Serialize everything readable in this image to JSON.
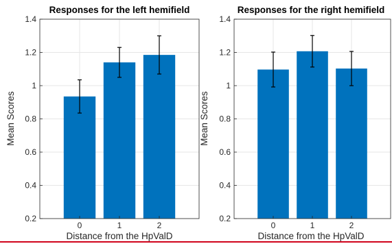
{
  "chart_data": [
    {
      "type": "bar",
      "title": "Responses for the left hemifield",
      "xlabel": "Distance from the HpValD",
      "ylabel": "Mean Scores",
      "categories": [
        "0",
        "1",
        "2"
      ],
      "values": [
        0.935,
        1.14,
        1.185
      ],
      "errors": [
        0.1,
        0.09,
        0.115
      ],
      "ylim": [
        0.2,
        1.4
      ],
      "yticks": [
        "0.2",
        "0.4",
        "0.6",
        "0.8",
        "1",
        "1.2",
        "1.4"
      ],
      "grid": true,
      "bar_color": "#0072BD"
    },
    {
      "type": "bar",
      "title": "Responses for the right hemifield",
      "xlabel": "Distance from the HpValD",
      "ylabel": "Mean Scores",
      "categories": [
        "0",
        "1",
        "2"
      ],
      "values": [
        1.097,
        1.207,
        1.103
      ],
      "errors": [
        0.105,
        0.095,
        0.103
      ],
      "ylim": [
        0.2,
        1.4
      ],
      "yticks": [
        "0.2",
        "0.4",
        "0.6",
        "0.8",
        "1",
        "1.2",
        "1.4"
      ],
      "grid": true,
      "bar_color": "#0072BD"
    }
  ]
}
